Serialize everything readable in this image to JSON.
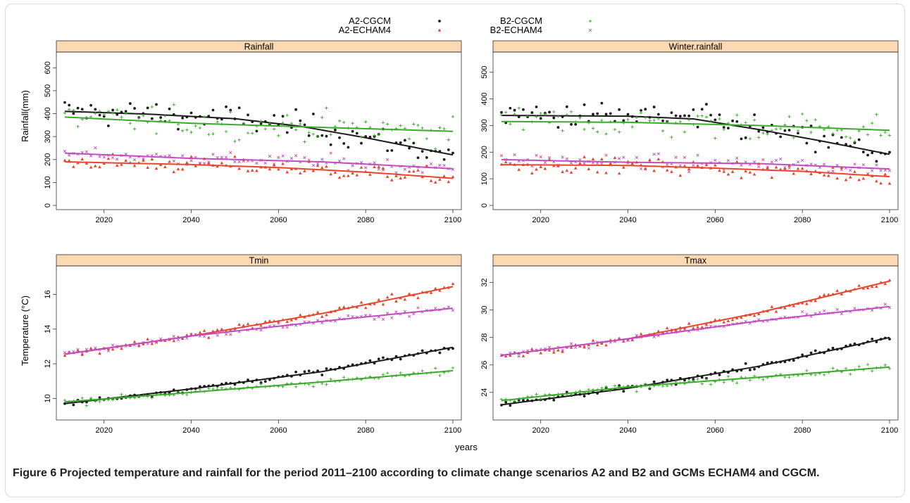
{
  "figure": {
    "caption_label": "Figure 6",
    "caption_text": "Projected temperature and rainfall for the period 2011–2100 according to climate change scenarios A2 and B2 and GCMs ECHAM4 and CGCM.",
    "x_axis_label": "years"
  },
  "colors": {
    "A2-CGCM": "#1a1a1a",
    "A2-ECHAM4": "#e8452c",
    "B2-CGCM": "#3aaa2a",
    "B2-ECHAM4": "#c04cc0",
    "strip": "#fbd9b3"
  },
  "chart_data": [
    {
      "type": "scatter",
      "title": "Rainfall",
      "ylabel": "Rainfall(mm)",
      "xlim": [
        2011,
        2100
      ],
      "ylim": [
        0,
        650
      ],
      "xticks": [
        2020,
        2040,
        2060,
        2080,
        2100
      ],
      "yticks": [
        0,
        100,
        200,
        300,
        400,
        500,
        600
      ],
      "legend": [
        "A2-CGCM",
        "A2-ECHAM4",
        "B2-CGCM",
        "B2-ECHAM4"
      ],
      "series": [
        {
          "name": "A2-CGCM",
          "marker": "circle",
          "trend": [
            [
              2011,
              410
            ],
            [
              2030,
              398
            ],
            [
              2050,
              378
            ],
            [
              2065,
              345
            ],
            [
              2080,
              295
            ],
            [
              2100,
              220
            ]
          ],
          "spread": 90
        },
        {
          "name": "B2-CGCM",
          "marker": "plus",
          "trend": [
            [
              2011,
              385
            ],
            [
              2040,
              358
            ],
            [
              2070,
              340
            ],
            [
              2100,
              323
            ]
          ],
          "spread": 95
        },
        {
          "name": "B2-ECHAM4",
          "marker": "cross",
          "trend": [
            [
              2011,
              228
            ],
            [
              2040,
              205
            ],
            [
              2070,
              190
            ],
            [
              2100,
              160
            ]
          ],
          "spread": 45
        },
        {
          "name": "A2-ECHAM4",
          "marker": "triangle",
          "trend": [
            [
              2011,
              190
            ],
            [
              2040,
              178
            ],
            [
              2060,
              165
            ],
            [
              2080,
              145
            ],
            [
              2100,
              118
            ]
          ],
          "spread": 55
        }
      ]
    },
    {
      "type": "scatter",
      "title": "Winter.rainfall",
      "ylabel": "",
      "xlim": [
        2011,
        2100
      ],
      "ylim": [
        0,
        560
      ],
      "xticks": [
        2020,
        2040,
        2060,
        2080,
        2100
      ],
      "yticks": [
        0,
        100,
        200,
        300,
        400,
        500
      ],
      "series": [
        {
          "name": "A2-CGCM",
          "marker": "circle",
          "trend": [
            [
              2011,
              338
            ],
            [
              2040,
              335
            ],
            [
              2055,
              325
            ],
            [
              2070,
              285
            ],
            [
              2085,
              240
            ],
            [
              2100,
              192
            ]
          ],
          "spread": 80
        },
        {
          "name": "B2-CGCM",
          "marker": "plus",
          "trend": [
            [
              2011,
              315
            ],
            [
              2040,
              312
            ],
            [
              2070,
              300
            ],
            [
              2100,
              282
            ]
          ],
          "spread": 85
        },
        {
          "name": "B2-ECHAM4",
          "marker": "cross",
          "trend": [
            [
              2011,
              172
            ],
            [
              2040,
              162
            ],
            [
              2070,
              157
            ],
            [
              2100,
              137
            ]
          ],
          "spread": 40
        },
        {
          "name": "A2-ECHAM4",
          "marker": "triangle",
          "trend": [
            [
              2011,
              153
            ],
            [
              2040,
              150
            ],
            [
              2060,
              140
            ],
            [
              2080,
              128
            ],
            [
              2100,
              108
            ]
          ],
          "spread": 45
        }
      ]
    },
    {
      "type": "scatter",
      "title": "Tmin",
      "ylabel": "Temperature (°C)",
      "xlim": [
        2011,
        2100
      ],
      "ylim": [
        9.0,
        17.4
      ],
      "xticks": [
        2020,
        2040,
        2060,
        2080,
        2100
      ],
      "yticks": [
        10,
        12,
        14,
        16
      ],
      "series": [
        {
          "name": "A2-ECHAM4",
          "marker": "triangle",
          "trend": [
            [
              2011,
              12.55
            ],
            [
              2040,
              13.6
            ],
            [
              2070,
              14.9
            ],
            [
              2100,
              16.45
            ]
          ],
          "spread": 0.35
        },
        {
          "name": "B2-ECHAM4",
          "marker": "cross",
          "trend": [
            [
              2011,
              12.55
            ],
            [
              2040,
              13.6
            ],
            [
              2070,
              14.45
            ],
            [
              2100,
              15.2
            ]
          ],
          "spread": 0.3
        },
        {
          "name": "A2-CGCM",
          "marker": "circle",
          "trend": [
            [
              2011,
              9.7
            ],
            [
              2040,
              10.55
            ],
            [
              2070,
              11.55
            ],
            [
              2100,
              12.95
            ]
          ],
          "spread": 0.25
        },
        {
          "name": "B2-CGCM",
          "marker": "plus",
          "trend": [
            [
              2011,
              9.8
            ],
            [
              2040,
              10.35
            ],
            [
              2070,
              10.95
            ],
            [
              2100,
              11.6
            ]
          ],
          "spread": 0.3
        }
      ]
    },
    {
      "type": "scatter",
      "title": "Tmax",
      "ylabel": "",
      "xlim": [
        2011,
        2100
      ],
      "ylim": [
        22.3,
        32.9
      ],
      "xticks": [
        2020,
        2040,
        2060,
        2080,
        2100
      ],
      "yticks": [
        24,
        26,
        28,
        30,
        32
      ],
      "series": [
        {
          "name": "A2-ECHAM4",
          "marker": "triangle",
          "trend": [
            [
              2011,
              26.7
            ],
            [
              2040,
              27.9
            ],
            [
              2070,
              29.8
            ],
            [
              2100,
              32.1
            ]
          ],
          "spread": 0.35
        },
        {
          "name": "B2-ECHAM4",
          "marker": "cross",
          "trend": [
            [
              2011,
              26.7
            ],
            [
              2040,
              27.9
            ],
            [
              2070,
              29.2
            ],
            [
              2100,
              30.25
            ]
          ],
          "spread": 0.35
        },
        {
          "name": "A2-CGCM",
          "marker": "circle",
          "trend": [
            [
              2011,
              23.1
            ],
            [
              2040,
              24.3
            ],
            [
              2070,
              25.9
            ],
            [
              2100,
              28.0
            ]
          ],
          "spread": 0.35
        },
        {
          "name": "B2-CGCM",
          "marker": "plus",
          "trend": [
            [
              2011,
              23.4
            ],
            [
              2040,
              24.4
            ],
            [
              2070,
              25.1
            ],
            [
              2100,
              25.85
            ]
          ],
          "spread": 0.4
        }
      ]
    }
  ]
}
